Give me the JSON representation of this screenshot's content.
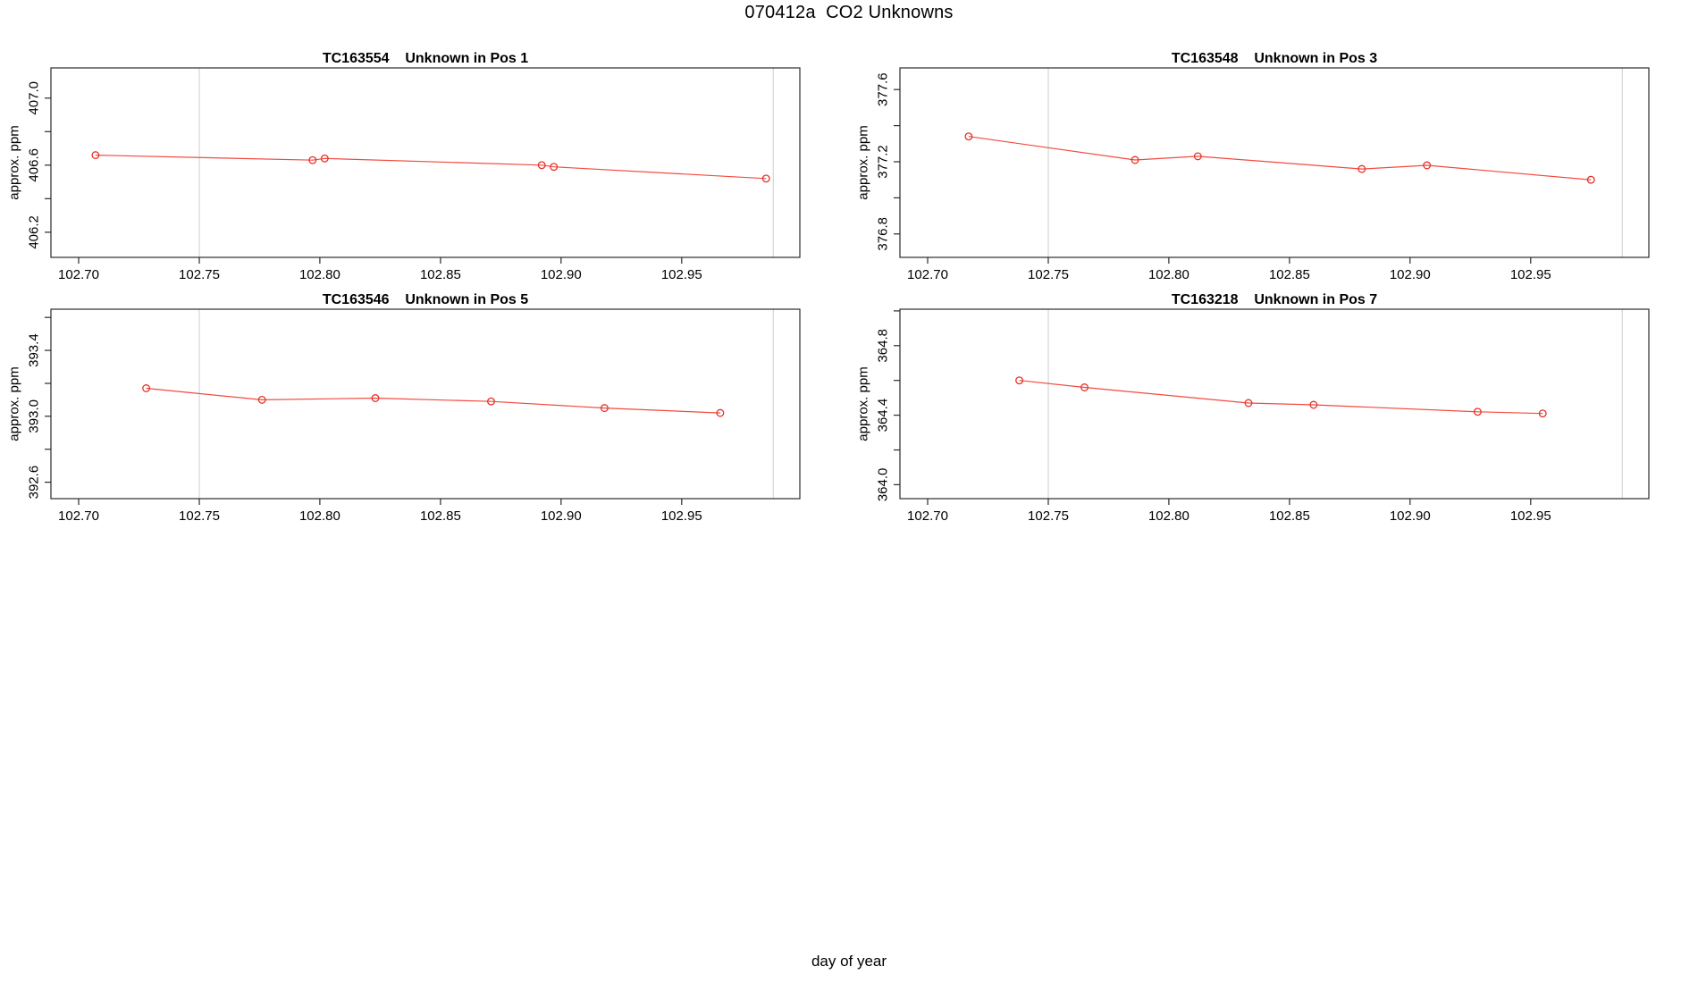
{
  "title": "070412a  CO2 Unknowns",
  "xlabel": "day of year",
  "colors": {
    "series_line": "#f24a3f",
    "marker": "#e53228",
    "gridline": "#d9d9d9",
    "axis": "#2b2b2b",
    "text": "#000000",
    "background": "#ffffff"
  },
  "chart_data": [
    {
      "type": "line",
      "title": "TC163554    Unknown in Pos 1",
      "sample_id": "TC163554",
      "position_label": "Unknown in Pos 1",
      "ylabel": "approx. ppm",
      "marker": "open-circle",
      "x": [
        102.707,
        102.797,
        102.802,
        102.892,
        102.897,
        102.985
      ],
      "y": [
        406.66,
        406.63,
        406.64,
        406.6,
        406.59,
        406.52
      ],
      "xlim": [
        102.6885,
        102.999
      ],
      "ylim": [
        406.05,
        407.18
      ],
      "xticks": [
        102.7,
        102.75,
        102.8,
        102.85,
        102.9,
        102.95
      ],
      "yticks_all": [
        406.2,
        406.4,
        406.6,
        406.8,
        407.0
      ],
      "yticks_labeled": [
        406.2,
        406.6,
        407.0
      ],
      "vlines": [
        102.75,
        102.988
      ]
    },
    {
      "type": "line",
      "title": "TC163548    Unknown in Pos 3",
      "sample_id": "TC163548",
      "position_label": "Unknown in Pos 3",
      "ylabel": "approx. ppm",
      "marker": "open-circle",
      "x": [
        102.717,
        102.786,
        102.812,
        102.88,
        102.907,
        102.975
      ],
      "y": [
        377.34,
        377.21,
        377.23,
        377.16,
        377.18,
        377.1
      ],
      "xlim": [
        102.6885,
        102.999
      ],
      "ylim": [
        376.67,
        377.72
      ],
      "xticks": [
        102.7,
        102.75,
        102.8,
        102.85,
        102.9,
        102.95
      ],
      "yticks_all": [
        376.8,
        377.0,
        377.2,
        377.4,
        377.6
      ],
      "yticks_labeled": [
        376.8,
        377.2,
        377.6
      ],
      "vlines": [
        102.75,
        102.988
      ]
    },
    {
      "type": "line",
      "title": "TC163546    Unknown in Pos 5",
      "sample_id": "TC163546",
      "position_label": "Unknown in Pos 5",
      "ylabel": "approx. ppm",
      "marker": "open-circle",
      "x": [
        102.728,
        102.776,
        102.823,
        102.871,
        102.918,
        102.966
      ],
      "y": [
        393.17,
        393.1,
        393.11,
        393.09,
        393.05,
        393.02
      ],
      "xlim": [
        102.6885,
        102.999
      ],
      "ylim": [
        392.5,
        393.65
      ],
      "xticks": [
        102.7,
        102.75,
        102.8,
        102.85,
        102.9,
        102.95
      ],
      "yticks_all": [
        392.6,
        392.8,
        393.0,
        393.2,
        393.4,
        393.6
      ],
      "yticks_labeled": [
        392.6,
        393.0,
        393.4
      ],
      "vlines": [
        102.75,
        102.988
      ]
    },
    {
      "type": "line",
      "title": "TC163218    Unknown in Pos 7",
      "sample_id": "TC163218",
      "position_label": "Unknown in Pos 7",
      "ylabel": "approx. ppm",
      "marker": "open-circle",
      "x": [
        102.738,
        102.765,
        102.833,
        102.86,
        102.928,
        102.955
      ],
      "y": [
        364.6,
        364.56,
        364.47,
        364.46,
        364.42,
        364.41
      ],
      "xlim": [
        102.6885,
        102.999
      ],
      "ylim": [
        363.92,
        365.01
      ],
      "xticks": [
        102.7,
        102.75,
        102.8,
        102.85,
        102.9,
        102.95
      ],
      "yticks_all": [
        364.0,
        364.2,
        364.4,
        364.6,
        364.8,
        365.0
      ],
      "yticks_labeled": [
        364.0,
        364.4,
        364.8
      ],
      "vlines": [
        102.75,
        102.988
      ]
    }
  ]
}
